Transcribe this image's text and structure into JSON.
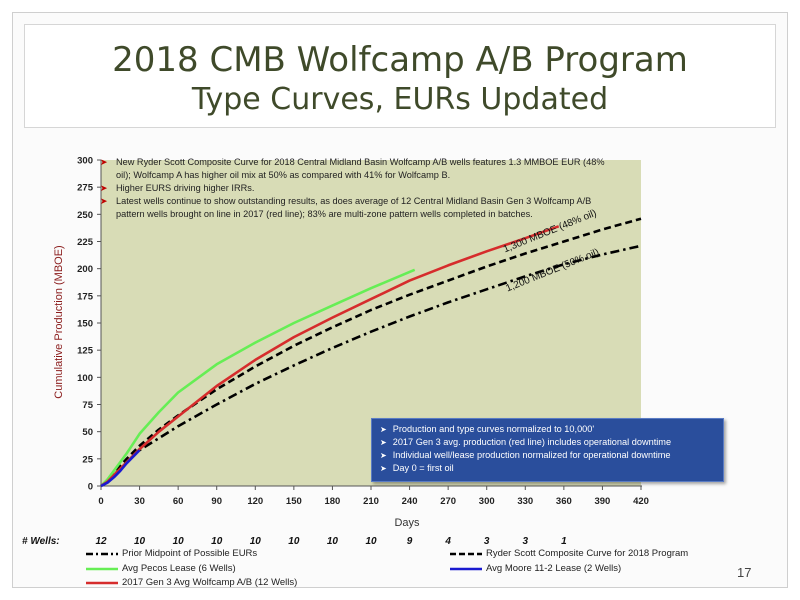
{
  "title": {
    "line1": "2018 CMB Wolfcamp A/B Program",
    "line2": "Type Curves, EURs Updated"
  },
  "notes": [
    "New Ryder Scott Composite Curve for 2018 Central Midland Basin Wolfcamp A/B wells features 1.3 MMBOE EUR (48% oil); Wolfcamp A has higher oil mix at 50% as compared with 41% for Wolfcamp B.",
    "Higher EURS driving higher IRRs.",
    "Latest wells continue to show outstanding results, as does average of 12 Central Midland Basin Gen 3 Wolfcamp A/B pattern wells brought on line in 2017 (red line); 83% are multi-zone pattern wells completed in batches."
  ],
  "callout": [
    "Production and type curves normalized to 10,000'",
    "2017 Gen 3 avg. production (red line) includes operational downtime",
    "Individual well/lease production normalized for operational downtime",
    "Day 0 = first oil"
  ],
  "wells": {
    "label": "# Wells:",
    "days": [
      0,
      30,
      60,
      90,
      120,
      150,
      180,
      210,
      240,
      270,
      300,
      330,
      360
    ],
    "counts": [
      "12",
      "10",
      "10",
      "10",
      "10",
      "10",
      "10",
      "10",
      "9",
      "4",
      "3",
      "3",
      "1"
    ]
  },
  "page_number": "17",
  "colors": {
    "plot_bg": "#d8dcb6",
    "red": "#d62c2c",
    "green": "#66ee55",
    "blue": "#1a1ad0",
    "black": "#000000",
    "axis_label": "#8b1d1d",
    "note_bullet": "#c00000",
    "callout_bg": "#2a4e9c"
  },
  "chart_data": {
    "type": "line",
    "title": "",
    "xlabel": "Days",
    "ylabel": "Cumulative Production (MBOE)",
    "xlim": [
      0,
      420
    ],
    "ylim": [
      0,
      300
    ],
    "xticks": [
      0,
      30,
      60,
      90,
      120,
      150,
      180,
      210,
      240,
      270,
      300,
      330,
      360,
      390,
      420
    ],
    "yticks": [
      0,
      25,
      50,
      75,
      100,
      125,
      150,
      175,
      200,
      225,
      250,
      275,
      300
    ],
    "grid": false,
    "legend_position": "bottom",
    "annotations": [
      {
        "text": "1,300 MBOE (48% oil)",
        "x": 350,
        "y": 232
      },
      {
        "text": "1,200 MBOE (50% oil)",
        "x": 352,
        "y": 196
      }
    ],
    "series": [
      {
        "name": "Prior Midpoint of Possible EURs",
        "style": "dashdot",
        "color": "#000000",
        "x": [
          0,
          5,
          10,
          20,
          30,
          45,
          60,
          90,
          120,
          150,
          180,
          210,
          240,
          270,
          300,
          330,
          360,
          390,
          420
        ],
        "y": [
          0,
          4,
          10,
          22,
          33,
          44,
          55,
          75,
          94,
          111,
          127,
          142,
          156,
          169,
          181,
          193,
          204,
          213,
          221
        ]
      },
      {
        "name": "Ryder Scott Composite Curve for 2018 Program",
        "style": "dashed",
        "color": "#000000",
        "x": [
          0,
          5,
          10,
          20,
          30,
          45,
          60,
          90,
          120,
          150,
          180,
          210,
          240,
          270,
          300,
          330,
          360,
          390,
          420
        ],
        "y": [
          0,
          5,
          12,
          25,
          37,
          52,
          65,
          89,
          110,
          129,
          146,
          162,
          176,
          189,
          202,
          214,
          225,
          236,
          246
        ]
      },
      {
        "name": "Avg Pecos Lease (6 Wells)",
        "style": "solid",
        "color": "#66ee55",
        "x": [
          0,
          5,
          10,
          20,
          30,
          45,
          60,
          90,
          120,
          150,
          180,
          210,
          240,
          244
        ],
        "y": [
          0,
          6,
          14,
          30,
          48,
          68,
          86,
          112,
          132,
          150,
          166,
          182,
          197,
          199
        ]
      },
      {
        "name": "Avg Moore 11-2 Lease (2 Wells)",
        "style": "solid",
        "color": "#1a1ad0",
        "x": [
          0,
          5,
          10,
          15,
          20,
          25,
          30
        ],
        "y": [
          0,
          3,
          8,
          14,
          21,
          27,
          33
        ]
      },
      {
        "name": "2017 Gen 3 Avg Wolfcamp A/B (12 Wells)",
        "style": "solid",
        "color": "#d62c2c",
        "x": [
          0,
          5,
          10,
          20,
          30,
          45,
          60,
          90,
          120,
          150,
          180,
          210,
          240,
          270,
          300,
          330,
          356
        ],
        "y": [
          0,
          4,
          10,
          22,
          34,
          50,
          64,
          92,
          116,
          137,
          155,
          172,
          189,
          203,
          216,
          228,
          239
        ]
      }
    ]
  }
}
